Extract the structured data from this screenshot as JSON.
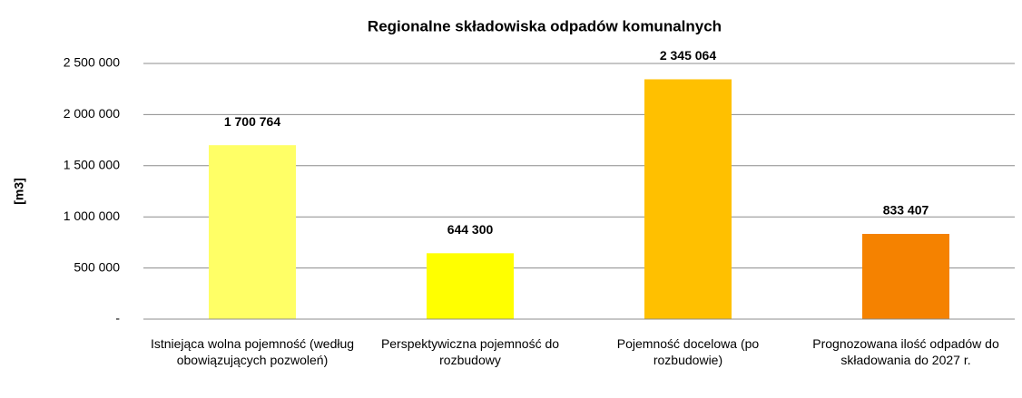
{
  "chart_data": {
    "type": "bar",
    "title": "Regionalne składowiska odpadów komunalnych",
    "y_label": "[m3]",
    "categories": [
      "Istniejąca wolna pojemność (według obowiązujących pozwoleń)",
      "Perspektywiczna pojemność do rozbudowy",
      "Pojemność docelowa (po rozbudowie)",
      "Prognozowana ilość odpadów do składowania do 2027 r."
    ],
    "values": [
      1700764,
      644300,
      2345064,
      833407
    ],
    "value_labels": [
      "1 700 764",
      "644 300",
      "2 345 064",
      "833 407"
    ],
    "colors": [
      "#ffff66",
      "#ffff00",
      "#ffc000",
      "#f58200"
    ],
    "ylim": [
      0,
      2500000
    ],
    "yticks": [
      {
        "value": 0,
        "label": "-"
      },
      {
        "value": 500000,
        "label": "500 000"
      },
      {
        "value": 1000000,
        "label": "1 000 000"
      },
      {
        "value": 1500000,
        "label": "1 500 000"
      },
      {
        "value": 2000000,
        "label": "2 000 000"
      },
      {
        "value": 2500000,
        "label": "2 500 000"
      }
    ],
    "grid": true
  }
}
